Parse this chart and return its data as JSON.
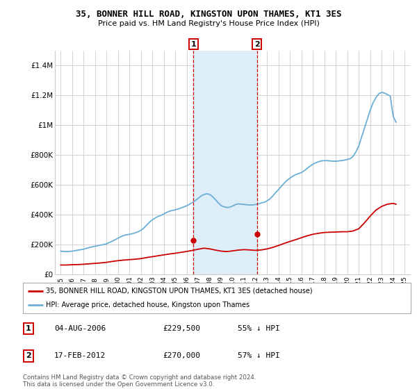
{
  "title": "35, BONNER HILL ROAD, KINGSTON UPON THAMES, KT1 3ES",
  "subtitle": "Price paid vs. HM Land Registry's House Price Index (HPI)",
  "legend_line1": "35, BONNER HILL ROAD, KINGSTON UPON THAMES, KT1 3ES (detached house)",
  "legend_line2": "HPI: Average price, detached house, Kingston upon Thames",
  "transaction1_date": "04-AUG-2006",
  "transaction1_price": "£229,500",
  "transaction1_hpi": "55% ↓ HPI",
  "transaction2_date": "17-FEB-2012",
  "transaction2_price": "£270,000",
  "transaction2_hpi": "57% ↓ HPI",
  "footer": "Contains HM Land Registry data © Crown copyright and database right 2024.\nThis data is licensed under the Open Government Licence v3.0.",
  "red_color": "#cc0000",
  "blue_color": "#6baed6",
  "shade_color": "#ddeef8",
  "grid_color": "#cccccc",
  "ylim_max": 1500000,
  "yticks": [
    0,
    200000,
    400000,
    600000,
    800000,
    1000000,
    1200000,
    1400000
  ],
  "ytick_labels": [
    "£0",
    "£200K",
    "£400K",
    "£600K",
    "£800K",
    "£1M",
    "£1.2M",
    "£1.4M"
  ],
  "xlim_min": 1994.5,
  "xlim_max": 2025.5,
  "transaction1_x": 2006.58,
  "transaction2_x": 2012.12,
  "transaction1_price_val": 229500,
  "transaction2_price_val": 270000,
  "hpi_years": [
    1995,
    1995.25,
    1995.5,
    1995.75,
    1996,
    1996.25,
    1996.5,
    1996.75,
    1997,
    1997.25,
    1997.5,
    1997.75,
    1998,
    1998.25,
    1998.5,
    1998.75,
    1999,
    1999.25,
    1999.5,
    1999.75,
    2000,
    2000.25,
    2000.5,
    2000.75,
    2001,
    2001.25,
    2001.5,
    2001.75,
    2002,
    2002.25,
    2002.5,
    2002.75,
    2003,
    2003.25,
    2003.5,
    2003.75,
    2004,
    2004.25,
    2004.5,
    2004.75,
    2005,
    2005.25,
    2005.5,
    2005.75,
    2006,
    2006.25,
    2006.5,
    2006.75,
    2007,
    2007.25,
    2007.5,
    2007.75,
    2008,
    2008.25,
    2008.5,
    2008.75,
    2009,
    2009.25,
    2009.5,
    2009.75,
    2010,
    2010.25,
    2010.5,
    2010.75,
    2011,
    2011.25,
    2011.5,
    2011.75,
    2012,
    2012.25,
    2012.5,
    2012.75,
    2013,
    2013.25,
    2013.5,
    2013.75,
    2014,
    2014.25,
    2014.5,
    2014.75,
    2015,
    2015.25,
    2015.5,
    2015.75,
    2016,
    2016.25,
    2016.5,
    2016.75,
    2017,
    2017.25,
    2017.5,
    2017.75,
    2018,
    2018.25,
    2018.5,
    2018.75,
    2019,
    2019.25,
    2019.5,
    2019.75,
    2020,
    2020.25,
    2020.5,
    2020.75,
    2021,
    2021.25,
    2021.5,
    2021.75,
    2022,
    2022.25,
    2022.5,
    2022.75,
    2023,
    2023.25,
    2023.5,
    2023.75,
    2024,
    2024.25
  ],
  "hpi_values": [
    155000,
    153000,
    152000,
    153000,
    155000,
    158000,
    162000,
    165000,
    168000,
    174000,
    179000,
    184000,
    188000,
    192000,
    196000,
    199000,
    205000,
    213000,
    222000,
    232000,
    242000,
    252000,
    260000,
    265000,
    268000,
    272000,
    278000,
    285000,
    295000,
    310000,
    330000,
    350000,
    365000,
    378000,
    388000,
    395000,
    405000,
    415000,
    423000,
    428000,
    432000,
    438000,
    445000,
    452000,
    460000,
    470000,
    482000,
    495000,
    510000,
    525000,
    535000,
    540000,
    535000,
    520000,
    500000,
    478000,
    460000,
    452000,
    448000,
    450000,
    458000,
    468000,
    472000,
    470000,
    468000,
    466000,
    464000,
    465000,
    468000,
    472000,
    478000,
    482000,
    492000,
    505000,
    525000,
    548000,
    568000,
    590000,
    612000,
    630000,
    645000,
    658000,
    668000,
    675000,
    682000,
    695000,
    710000,
    725000,
    738000,
    748000,
    755000,
    760000,
    762000,
    762000,
    760000,
    758000,
    758000,
    760000,
    762000,
    765000,
    770000,
    775000,
    790000,
    820000,
    860000,
    920000,
    980000,
    1040000,
    1100000,
    1150000,
    1185000,
    1210000,
    1220000,
    1215000,
    1205000,
    1195000,
    1060000,
    1020000
  ],
  "red_years": [
    1995,
    1995.5,
    1996,
    1996.5,
    1997,
    1997.5,
    1998,
    1998.5,
    1999,
    1999.5,
    2000,
    2000.5,
    2001,
    2001.5,
    2002,
    2002.5,
    2003,
    2003.5,
    2004,
    2004.5,
    2005,
    2005.5,
    2006,
    2006.5,
    2007,
    2007.5,
    2008,
    2008.5,
    2009,
    2009.5,
    2010,
    2010.5,
    2011,
    2011.5,
    2012,
    2012.5,
    2013,
    2013.5,
    2014,
    2014.5,
    2015,
    2015.5,
    2016,
    2016.5,
    2017,
    2017.5,
    2018,
    2018.5,
    2019,
    2019.5,
    2020,
    2020.5,
    2021,
    2021.5,
    2022,
    2022.5,
    2023,
    2023.5,
    2024,
    2024.25
  ],
  "red_values": [
    62000,
    62000,
    64000,
    65000,
    67000,
    70000,
    73000,
    76000,
    80000,
    86000,
    91000,
    95000,
    98000,
    101000,
    105000,
    112000,
    118000,
    124000,
    130000,
    136000,
    141000,
    147000,
    153000,
    160000,
    168000,
    175000,
    170000,
    162000,
    155000,
    152000,
    157000,
    162000,
    165000,
    163000,
    160000,
    163000,
    170000,
    180000,
    193000,
    207000,
    220000,
    232000,
    245000,
    258000,
    268000,
    275000,
    280000,
    282000,
    283000,
    285000,
    285000,
    290000,
    305000,
    345000,
    390000,
    430000,
    455000,
    470000,
    475000,
    470000
  ]
}
